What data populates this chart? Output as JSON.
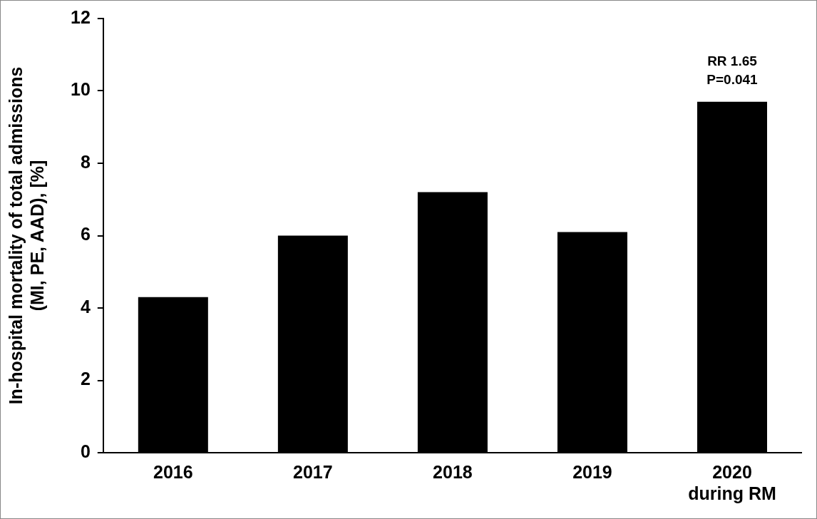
{
  "chart_data": {
    "type": "bar",
    "ylabel": "In-hospital mortality of total admissions\n(MI, PE, AAD), [%]",
    "categories": [
      "2016",
      "2017",
      "2018",
      "2019",
      "2020\nduring RM"
    ],
    "values": [
      4.3,
      6.0,
      7.2,
      6.1,
      9.7
    ],
    "color": "#000000",
    "ylim": [
      0,
      12
    ],
    "yticks": [
      0,
      2,
      4,
      6,
      8,
      10,
      12
    ],
    "grid": false,
    "legend": false,
    "annotations": [
      {
        "text": "RR 1.65\nP=0.041",
        "x": "2020\nduring RM",
        "y": 9.7
      }
    ]
  }
}
